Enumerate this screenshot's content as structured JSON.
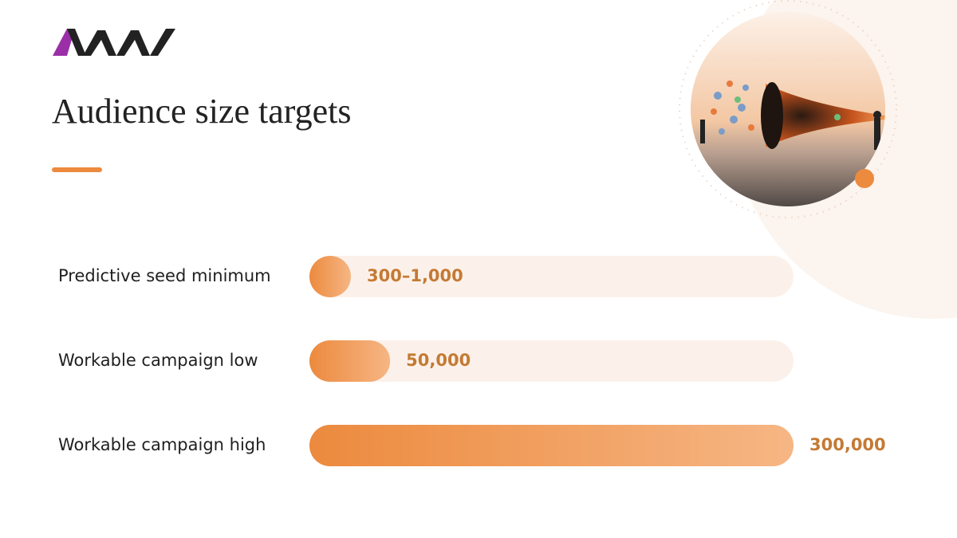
{
  "chart_data": {
    "type": "bar",
    "orientation": "horizontal",
    "title": "Audience size targets",
    "categories": [
      "Predictive seed minimum",
      "Workable campaign low",
      "Workable campaign high"
    ],
    "values": [
      1000,
      50000,
      300000
    ],
    "value_labels": [
      "300–1,000",
      "50,000",
      "300,000"
    ],
    "color": "#ec8a3e",
    "xlim": [
      0,
      300000
    ]
  }
}
